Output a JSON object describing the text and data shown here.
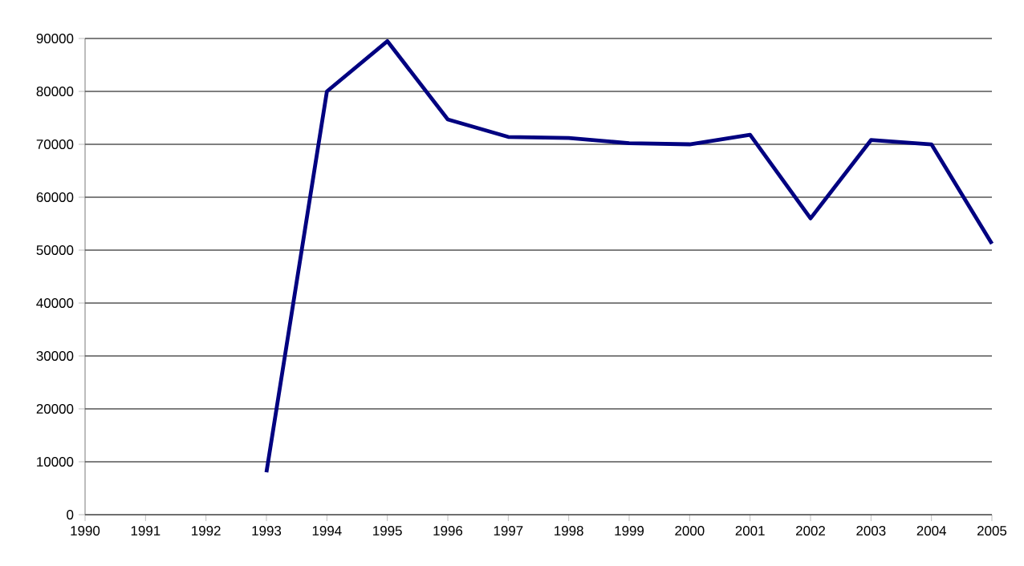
{
  "chart_data": {
    "type": "line",
    "x": [
      1993,
      1994,
      1995,
      1996,
      1997,
      1998,
      1999,
      2000,
      2001,
      2002,
      2003,
      2004,
      2005
    ],
    "values": [
      8000,
      80000,
      89500,
      74700,
      71400,
      71200,
      70200,
      70000,
      71800,
      56000,
      70800,
      70000,
      51200
    ],
    "color": "#000080",
    "xlim": [
      1990,
      2005
    ],
    "xticks": [
      1990,
      1991,
      1992,
      1993,
      1994,
      1995,
      1996,
      1997,
      1998,
      1999,
      2000,
      2001,
      2002,
      2003,
      2004,
      2005
    ],
    "ylim": [
      0,
      90000
    ],
    "yticks": [
      0,
      10000,
      20000,
      30000,
      40000,
      50000,
      60000,
      70000,
      80000,
      90000
    ],
    "grid": "y",
    "marker": "none",
    "line_style": "solid"
  }
}
